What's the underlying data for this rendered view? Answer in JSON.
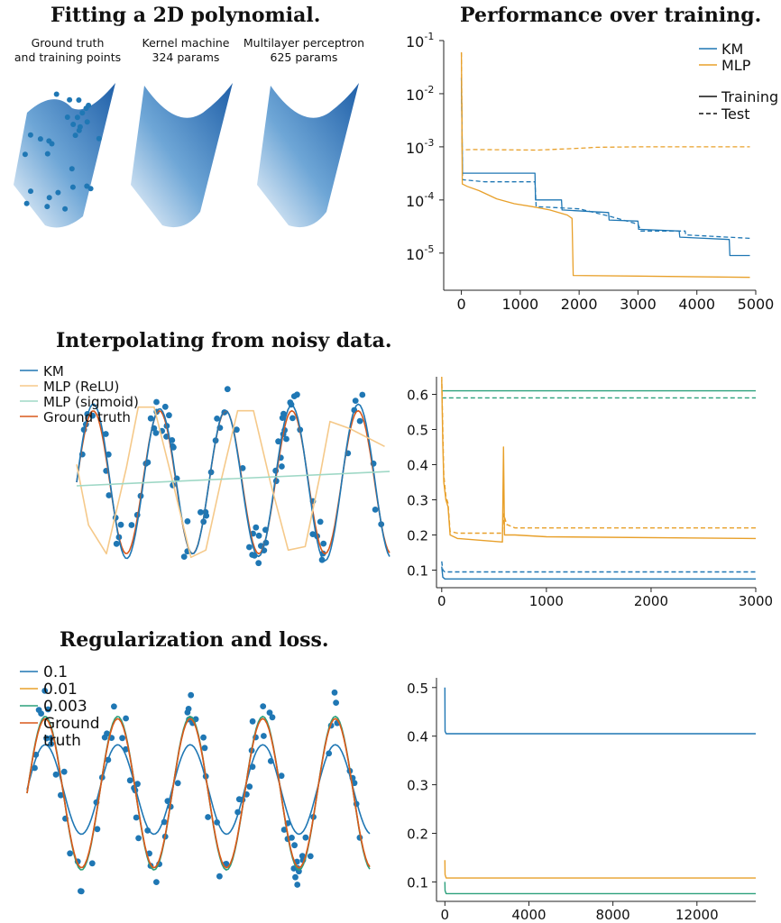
{
  "colors": {
    "blue": "#1f77b4",
    "orange": "#e8a02a",
    "green": "#2ca07c",
    "lightorange": "#f5c98a",
    "lightgreen": "#9fd8c6",
    "red": "#d9581b",
    "axis": "#222222"
  },
  "panel_a": {
    "title": "Fitting a 2D polynomial.",
    "captions": [
      {
        "line1": "Ground truth",
        "line2": "and training points"
      },
      {
        "line1": "Kernel machine",
        "line2": "324 params"
      },
      {
        "line1": "Multilayer perceptron",
        "line2": "625 params"
      }
    ]
  },
  "panel_b": {
    "title": "Performance over training."
  },
  "panel_c": {
    "title": "Interpolating from noisy data."
  },
  "panel_e": {
    "title": "Regularization and loss."
  },
  "chart_data": [
    {
      "id": "performance",
      "type": "line",
      "title": "Performance over training.",
      "yscale": "log",
      "ylim": [
        2e-06,
        0.1
      ],
      "xlim": [
        -300,
        5000
      ],
      "xticks": [
        "0",
        "1000",
        "2000",
        "3000",
        "4000",
        "5000"
      ],
      "xtick_values": [
        0,
        1000,
        2000,
        3000,
        4000,
        5000
      ],
      "yticks": [
        {
          "base": "10",
          "exp": "-1",
          "v": 0.1
        },
        {
          "base": "10",
          "exp": "-2",
          "v": 0.01
        },
        {
          "base": "10",
          "exp": "-3",
          "v": 0.001
        },
        {
          "base": "10",
          "exp": "-4",
          "v": 0.0001
        },
        {
          "base": "10",
          "exp": "-5",
          "v": 1e-05
        }
      ],
      "legend": [
        {
          "label": "KM",
          "color": "blue",
          "dash": false
        },
        {
          "label": "MLP",
          "color": "orange",
          "dash": false
        },
        {
          "label": "Training",
          "color": "black",
          "dash": false
        },
        {
          "label": "Test",
          "color": "black",
          "dash": true
        }
      ],
      "series": [
        {
          "name": "KM Training",
          "color": "blue",
          "dash": false,
          "points": [
            [
              0,
              0.02
            ],
            [
              20,
              0.00032
            ],
            [
              1250,
              0.00032
            ],
            [
              1260,
              0.0001
            ],
            [
              1700,
              0.0001
            ],
            [
              1710,
              6.5e-05
            ],
            [
              2500,
              5.8e-05
            ],
            [
              2510,
              4.2e-05
            ],
            [
              3000,
              4e-05
            ],
            [
              3010,
              2.8e-05
            ],
            [
              3700,
              2.6e-05
            ],
            [
              3710,
              2e-05
            ],
            [
              4550,
              1.8e-05
            ],
            [
              4560,
              9e-06
            ],
            [
              4900,
              9e-06
            ]
          ]
        },
        {
          "name": "KM Test",
          "color": "blue",
          "dash": true,
          "points": [
            [
              0,
              0.02
            ],
            [
              20,
              0.00024
            ],
            [
              400,
              0.00022
            ],
            [
              1250,
              0.00022
            ],
            [
              1270,
              7.5e-05
            ],
            [
              2000,
              6.8e-05
            ],
            [
              2500,
              5e-05
            ],
            [
              3000,
              3.5e-05
            ],
            [
              3050,
              2.6e-05
            ],
            [
              3800,
              2.6e-05
            ],
            [
              3810,
              2.2e-05
            ],
            [
              4900,
              1.9e-05
            ]
          ]
        },
        {
          "name": "MLP Training",
          "color": "orange",
          "dash": false,
          "points": [
            [
              0,
              0.06
            ],
            [
              15,
              0.0002
            ],
            [
              100,
              0.00018
            ],
            [
              300,
              0.00015
            ],
            [
              600,
              0.000105
            ],
            [
              900,
              8.5e-05
            ],
            [
              1200,
              7.5e-05
            ],
            [
              1500,
              6.5e-05
            ],
            [
              1800,
              5.2e-05
            ],
            [
              1880,
              4.5e-05
            ],
            [
              1900,
              3.8e-06
            ],
            [
              3000,
              3.7e-06
            ],
            [
              4900,
              3.5e-06
            ]
          ]
        },
        {
          "name": "MLP Test",
          "color": "orange",
          "dash": true,
          "points": [
            [
              0,
              0.06
            ],
            [
              15,
              0.00088
            ],
            [
              200,
              0.00089
            ],
            [
              1300,
              0.00087
            ],
            [
              2000,
              0.00094
            ],
            [
              2300,
              0.00098
            ],
            [
              3000,
              0.001
            ],
            [
              4900,
              0.001
            ]
          ]
        }
      ]
    },
    {
      "id": "interp_fit",
      "type": "line",
      "title": "Interpolating from noisy data.",
      "xlim": [
        0,
        3.15
      ],
      "ylim": [
        -1.45,
        1.45
      ],
      "legend": [
        {
          "label": "KM",
          "color": "blue"
        },
        {
          "label": "MLP (ReLU)",
          "color": "lightorange"
        },
        {
          "label": "MLP (sigmoid)",
          "color": "lightgreen"
        },
        {
          "label": "Ground truth",
          "color": "red"
        }
      ],
      "series": [
        {
          "name": "Ground truth",
          "color": "red",
          "formula": "sin(2*pi*1.5*x)"
        },
        {
          "name": "KM",
          "color": "blue",
          "formula": "km"
        },
        {
          "name": "MLP (ReLU)",
          "color": "lightorange",
          "points": [
            [
              0,
              0.25
            ],
            [
              0.12,
              -0.6
            ],
            [
              0.3,
              -1.0
            ],
            [
              0.5,
              0.2
            ],
            [
              0.62,
              1.05
            ],
            [
              0.78,
              1.05
            ],
            [
              0.95,
              0.1
            ],
            [
              1.15,
              -1.05
            ],
            [
              1.3,
              -0.95
            ],
            [
              1.45,
              0.0
            ],
            [
              1.62,
              1.0
            ],
            [
              1.78,
              1.0
            ],
            [
              1.95,
              0.0
            ],
            [
              2.13,
              -0.95
            ],
            [
              2.3,
              -0.9
            ],
            [
              2.45,
              0.1
            ],
            [
              2.55,
              0.85
            ],
            [
              2.75,
              0.75
            ],
            [
              3.1,
              0.5
            ]
          ]
        },
        {
          "name": "MLP (sigmoid)",
          "color": "lightgreen",
          "points": [
            [
              0,
              -0.05
            ],
            [
              3.15,
              0.15
            ]
          ]
        }
      ],
      "scatter_color": "blue"
    },
    {
      "id": "interp_loss",
      "type": "line",
      "xlim": [
        -50,
        3000
      ],
      "ylim": [
        0.05,
        0.65
      ],
      "xticks": [
        "0",
        "1000",
        "2000",
        "3000"
      ],
      "xtick_values": [
        0,
        1000,
        2000,
        3000
      ],
      "yticks": [
        "0.1",
        "0.2",
        "0.3",
        "0.4",
        "0.5",
        "0.6"
      ],
      "ytick_values": [
        0.1,
        0.2,
        0.3,
        0.4,
        0.5,
        0.6
      ],
      "series": [
        {
          "name": "MLP (sigmoid) Training",
          "color": "green",
          "dash": false,
          "points": [
            [
              0,
              0.61
            ],
            [
              3000,
              0.61
            ]
          ]
        },
        {
          "name": "MLP (sigmoid) Test",
          "color": "green",
          "dash": true,
          "points": [
            [
              0,
              0.59
            ],
            [
              3000,
              0.59
            ]
          ]
        },
        {
          "name": "MLP (ReLU) Training",
          "color": "orange",
          "dash": false,
          "points": [
            [
              0,
              0.64
            ],
            [
              10,
              0.46
            ],
            [
              20,
              0.35
            ],
            [
              40,
              0.3
            ],
            [
              60,
              0.28
            ],
            [
              80,
              0.2
            ],
            [
              150,
              0.19
            ],
            [
              580,
              0.18
            ],
            [
              590,
              0.45
            ],
            [
              600,
              0.2
            ],
            [
              700,
              0.2
            ],
            [
              1000,
              0.195
            ],
            [
              3000,
              0.19
            ]
          ]
        },
        {
          "name": "MLP (ReLU) Test",
          "color": "orange",
          "dash": true,
          "points": [
            [
              0,
              0.65
            ],
            [
              10,
              0.5
            ],
            [
              20,
              0.37
            ],
            [
              40,
              0.31
            ],
            [
              60,
              0.29
            ],
            [
              80,
              0.21
            ],
            [
              150,
              0.205
            ],
            [
              580,
              0.205
            ],
            [
              590,
              0.26
            ],
            [
              620,
              0.23
            ],
            [
              700,
              0.22
            ],
            [
              3000,
              0.22
            ]
          ]
        },
        {
          "name": "KM Training",
          "color": "blue",
          "dash": false,
          "points": [
            [
              0,
              0.11
            ],
            [
              10,
              0.08
            ],
            [
              30,
              0.075
            ],
            [
              3000,
              0.075
            ]
          ]
        },
        {
          "name": "KM Test",
          "color": "blue",
          "dash": true,
          "points": [
            [
              0,
              0.125
            ],
            [
              10,
              0.1
            ],
            [
              30,
              0.095
            ],
            [
              3000,
              0.095
            ]
          ]
        }
      ]
    },
    {
      "id": "reg_fit",
      "type": "line",
      "title": "Regularization and loss.",
      "xlim": [
        0,
        3.15
      ],
      "ylim": [
        -1.45,
        1.45
      ],
      "legend": [
        {
          "label": "0.1",
          "color": "blue"
        },
        {
          "label": "0.01",
          "color": "orange"
        },
        {
          "label": "0.003",
          "color": "green"
        },
        {
          "label": "Ground",
          "color": "red"
        },
        {
          "label": "truth",
          "color": "none"
        }
      ],
      "series": [
        {
          "name": "0.1",
          "color": "blue",
          "amplitude": 0.6,
          "offset": 0.05
        },
        {
          "name": "0.01",
          "color": "orange",
          "amplitude": 1.0,
          "offset": 0.0
        },
        {
          "name": "0.003",
          "color": "green",
          "amplitude": 1.03,
          "offset": 0.0
        },
        {
          "name": "Ground truth",
          "color": "red",
          "amplitude": 1.0,
          "offset": 0.0
        }
      ],
      "scatter_color": "blue"
    },
    {
      "id": "reg_loss",
      "type": "line",
      "xlim": [
        -400,
        14800
      ],
      "ylim": [
        0.06,
        0.52
      ],
      "xticks": [
        "0",
        "4000",
        "8000",
        "12000"
      ],
      "xtick_values": [
        0,
        4000,
        8000,
        12000
      ],
      "yticks": [
        "0.1",
        "0.2",
        "0.3",
        "0.4",
        "0.5"
      ],
      "ytick_values": [
        0.1,
        0.2,
        0.3,
        0.4,
        0.5
      ],
      "series": [
        {
          "name": "0.1",
          "color": "blue",
          "points": [
            [
              0,
              0.5
            ],
            [
              10,
              0.41
            ],
            [
              60,
              0.405
            ],
            [
              14800,
              0.405
            ]
          ]
        },
        {
          "name": "0.01",
          "color": "orange",
          "points": [
            [
              0,
              0.145
            ],
            [
              10,
              0.115
            ],
            [
              60,
              0.108
            ],
            [
              14800,
              0.108
            ]
          ]
        },
        {
          "name": "0.003",
          "color": "green",
          "points": [
            [
              0,
              0.1
            ],
            [
              10,
              0.082
            ],
            [
              60,
              0.076
            ],
            [
              14800,
              0.076
            ]
          ]
        }
      ]
    }
  ]
}
